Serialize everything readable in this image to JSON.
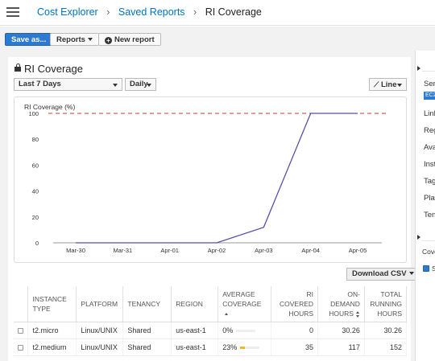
{
  "breadcrumb": {
    "home": "Cost Explorer",
    "reports": "Saved Reports",
    "current": "RI Coverage"
  },
  "toolbar": {
    "save_label": "Save as...",
    "reports_label": "Reports",
    "new_report_label": "New report",
    "plus_icon": "+"
  },
  "report": {
    "title": "RI Coverage",
    "date_range": "Last 7 Days",
    "granularity": "Daily",
    "chart_type_label": "Line",
    "download_label": "Download CSV"
  },
  "chart_data": {
    "type": "line",
    "ylabel": "RI Coverage (%)",
    "x": [
      "Mar-30",
      "Mar-31",
      "Apr-01",
      "Apr-02",
      "Apr-03",
      "Apr-04",
      "Apr-05"
    ],
    "series": [
      {
        "values": [
          0,
          0,
          0,
          0,
          12,
          100,
          100
        ],
        "color": "#5a4fa8"
      }
    ],
    "target": {
      "value": 100,
      "color": "#c0392b",
      "style": "dashed"
    },
    "yticks": [
      0,
      20,
      40,
      60,
      80,
      100
    ],
    "ylim": [
      0,
      100
    ],
    "grid": false
  },
  "table": {
    "headers": [
      {
        "label": "INSTANCE TYPE",
        "align": "left"
      },
      {
        "label": "PLATFORM",
        "align": "left"
      },
      {
        "label": "TENANCY",
        "align": "left"
      },
      {
        "label": "REGION",
        "align": "left"
      },
      {
        "label": "AVERAGE COVERAGE",
        "align": "left",
        "sort": "asc"
      },
      {
        "label": "RI COVERED HOURS",
        "align": "right"
      },
      {
        "label": "ON-DEMAND HOURS",
        "align": "right",
        "sort": "both"
      },
      {
        "label": "TOTAL RUNNING HOURS",
        "align": "right"
      }
    ],
    "rows": [
      {
        "instance": "t2.micro",
        "platform": "Linux/UNIX",
        "tenancy": "Shared",
        "region": "us-east-1",
        "coverage": "0%",
        "coverage_fraction": 0.0,
        "covered": "0",
        "ondemand": "30.26",
        "total": "30.26"
      },
      {
        "instance": "t2.medium",
        "platform": "Linux/UNIX",
        "tenancy": "Shared",
        "region": "us-east-1",
        "coverage": "23%",
        "coverage_fraction": 0.23,
        "covered": "35",
        "ondemand": "117",
        "total": "152"
      }
    ]
  },
  "side": {
    "items": [
      "Ser",
      "Link",
      "Reg",
      "Ava",
      "Inst",
      "Tag",
      "Plat",
      "Ten",
      "Cove",
      "Sh"
    ],
    "badge": "EC2"
  }
}
